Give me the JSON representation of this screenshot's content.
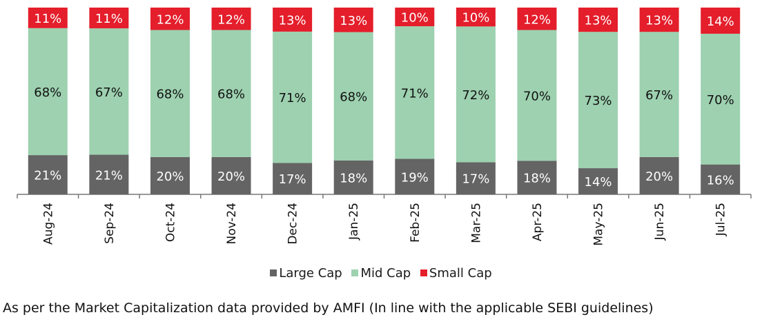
{
  "chart_data": {
    "type": "bar",
    "stacked": true,
    "percent": true,
    "categories": [
      "Aug-24",
      "Sep-24",
      "Oct-24",
      "Nov-24",
      "Dec-24",
      "Jan-25",
      "Feb-25",
      "Mar-25",
      "Apr-25",
      "May-25",
      "Jun-25",
      "Jul-25"
    ],
    "series": [
      {
        "name": "Large Cap",
        "color": "#646464",
        "values": [
          21,
          21,
          20,
          20,
          17,
          18,
          19,
          17,
          18,
          14,
          20,
          16
        ]
      },
      {
        "name": "Mid Cap",
        "color": "#9dd1b0",
        "values": [
          68,
          67,
          68,
          68,
          71,
          68,
          71,
          72,
          70,
          73,
          67,
          70
        ]
      },
      {
        "name": "Small Cap",
        "color": "#e41e2b",
        "values": [
          11,
          11,
          12,
          12,
          13,
          13,
          10,
          10,
          12,
          13,
          13,
          14
        ]
      }
    ],
    "data_labels": true,
    "legend": "bottom",
    "grid": false
  },
  "footnote": "As per the Market Capitalization data provided by AMFI (In line with the applicable SEBI guidelines)"
}
